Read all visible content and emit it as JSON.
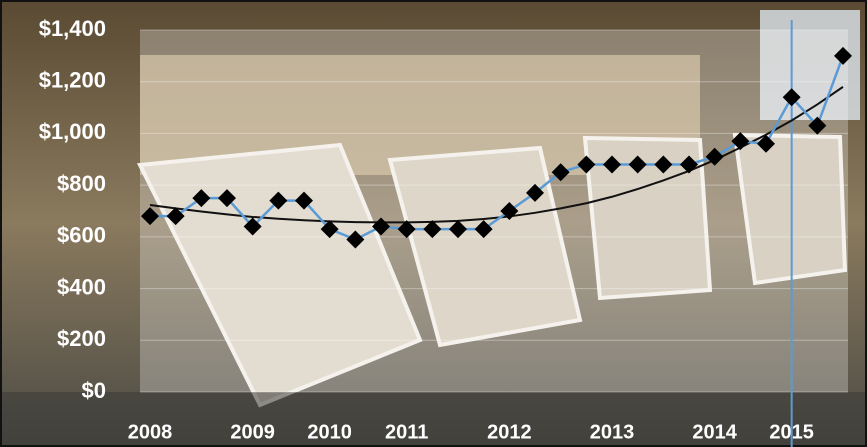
{
  "chart_data": {
    "type": "line",
    "categories": [
      "2008",
      null,
      null,
      null,
      "2009",
      null,
      null,
      "2010",
      null,
      null,
      "2011",
      null,
      null,
      null,
      "2012",
      null,
      null,
      null,
      "2013",
      null,
      null,
      null,
      "2014",
      null,
      null,
      "2015",
      null,
      null
    ],
    "series": [
      {
        "color": "#5b9bd5",
        "values": [
          680,
          680,
          750,
          750,
          640,
          740,
          740,
          630,
          590,
          640,
          630,
          630,
          630,
          630,
          700,
          770,
          850,
          880,
          880,
          880,
          880,
          880,
          910,
          970,
          960,
          1140,
          1030,
          1300
        ]
      }
    ],
    "trendline": {
      "color": "#111111",
      "values": [
        723,
        710,
        698,
        687,
        677,
        670,
        664,
        660,
        657,
        656,
        656,
        658,
        662,
        669,
        679,
        693,
        710,
        730,
        755,
        785,
        818,
        855,
        897,
        945,
        995,
        1050,
        1112,
        1180
      ]
    },
    "vertical_line": "2015",
    "ylim": [
      0,
      1400
    ],
    "yticks": [
      {
        "value": 0,
        "label": "$0"
      },
      {
        "value": 200,
        "label": "$200"
      },
      {
        "value": 400,
        "label": "$400"
      },
      {
        "value": 600,
        "label": "$600"
      },
      {
        "value": 800,
        "label": "$800"
      },
      {
        "value": 1000,
        "label": "$1,000"
      },
      {
        "value": 1200,
        "label": "$1,200"
      },
      {
        "value": 1400,
        "label": "$1,400"
      }
    ],
    "grid": true
  }
}
